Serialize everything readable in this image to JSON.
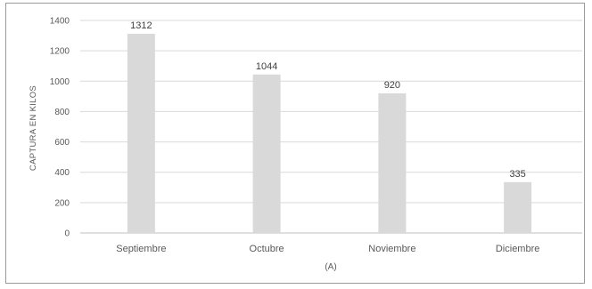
{
  "chart_data": {
    "type": "bar",
    "categories": [
      "Septiembre",
      "Octubre",
      "Noviembre",
      "Diciembre"
    ],
    "values": [
      1312,
      1044,
      920,
      335
    ],
    "data_labels": [
      "1312",
      "1044",
      "920",
      "335"
    ],
    "title": "",
    "xlabel": "(A)",
    "ylabel": "CAPTURA EN KILOS",
    "ylim": [
      0,
      1400
    ],
    "yticks": [
      "0",
      "200",
      "400",
      "600",
      "800",
      "1000",
      "1200",
      "1400"
    ],
    "grid": true,
    "legend": "none",
    "bar_color": "#d9d9d9",
    "grid_color": "#d9d9d9"
  }
}
